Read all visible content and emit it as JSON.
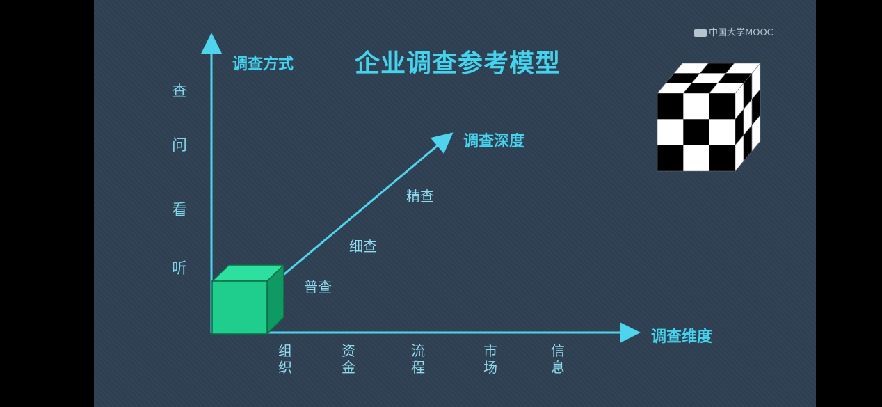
{
  "title": "企业调查参考模型",
  "watermark": "中国大学MOOC",
  "y_axis": {
    "label": "调查方式",
    "methods": [
      "查",
      "问",
      "看",
      "听"
    ]
  },
  "depth_axis": {
    "label": "调查深度",
    "levels": [
      "普查",
      "细查",
      "精查"
    ]
  },
  "x_axis": {
    "label": "调查维度",
    "dimensions": [
      {
        "line1": "组",
        "line2": "织"
      },
      {
        "line1": "资",
        "line2": "金"
      },
      {
        "line1": "流",
        "line2": "程"
      },
      {
        "line1": "市",
        "line2": "场"
      },
      {
        "line1": "信",
        "line2": "息"
      }
    ]
  },
  "colors": {
    "background": "#2e3f52",
    "axis": "#4fd4ee",
    "title": "#45d2ec",
    "cube_front": "#1fce8c",
    "cube_side": "#0f9a63",
    "cube_top": "#2ee0a0"
  }
}
